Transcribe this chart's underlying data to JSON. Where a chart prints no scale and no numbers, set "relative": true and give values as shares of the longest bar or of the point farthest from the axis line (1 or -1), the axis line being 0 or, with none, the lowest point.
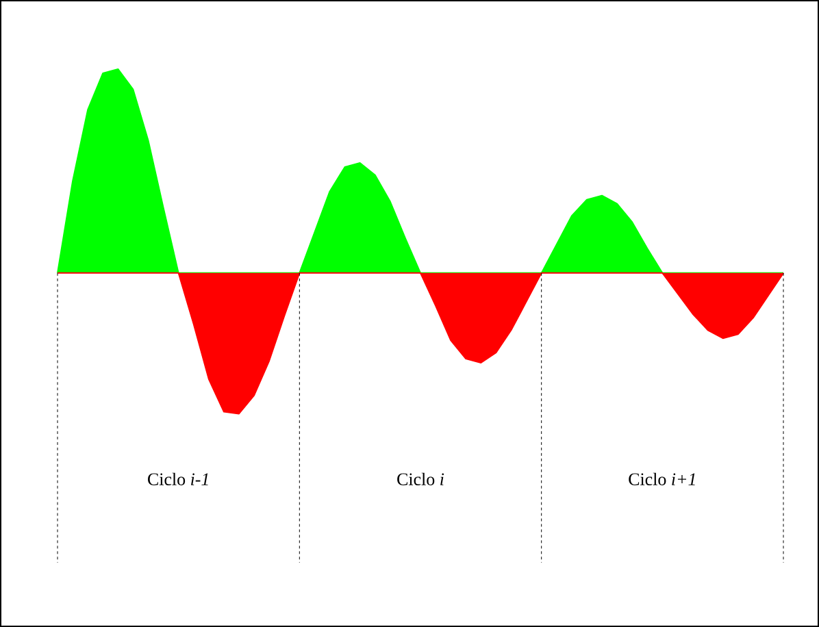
{
  "chart_data": {
    "type": "area",
    "relative": true,
    "categories": [
      null,
      null,
      null,
      null,
      null,
      null,
      null,
      null,
      null,
      null,
      null,
      null,
      null,
      null,
      null,
      null,
      null,
      null,
      null,
      null,
      null,
      null,
      null,
      null,
      null,
      null,
      null,
      null,
      null,
      null,
      null,
      null,
      null,
      null,
      null,
      null,
      null,
      null,
      null,
      null,
      null,
      null,
      null,
      null,
      null,
      null,
      null,
      null,
      null
    ],
    "series": [
      {
        "color": "#00ff00",
        "values": [
          0,
          0.45,
          0.8,
          0.98,
          1.0,
          0.9,
          0.65,
          0.32,
          0,
          0,
          0,
          0,
          0,
          0,
          0,
          0,
          0,
          0.2,
          0.4,
          0.52,
          0.54,
          0.48,
          0.35,
          0.17,
          0,
          0,
          0,
          0,
          0,
          0,
          0,
          0,
          0,
          0.14,
          0.28,
          0.36,
          0.38,
          0.34,
          0.25,
          0.12,
          0,
          0,
          0,
          0,
          0,
          0,
          0,
          0,
          0
        ]
      },
      {
        "color": "#ff0000",
        "values": [
          0,
          0,
          0,
          0,
          0,
          0,
          0,
          0,
          0,
          -0.25,
          -0.52,
          -0.68,
          -0.69,
          -0.6,
          -0.43,
          -0.21,
          0,
          0,
          0,
          0,
          0,
          0,
          0,
          0,
          0,
          -0.16,
          -0.33,
          -0.42,
          -0.44,
          -0.39,
          -0.28,
          -0.14,
          0,
          0,
          0,
          0,
          0,
          0,
          0,
          0,
          0,
          -0.1,
          -0.2,
          -0.28,
          -0.32,
          -0.3,
          -0.22,
          -0.11,
          0
        ]
      }
    ],
    "grid": "x",
    "line_style": "dashed",
    "annotations": [
      "Ciclo *i-1*",
      "Ciclo *i*",
      "Ciclo *i+1*"
    ]
  }
}
